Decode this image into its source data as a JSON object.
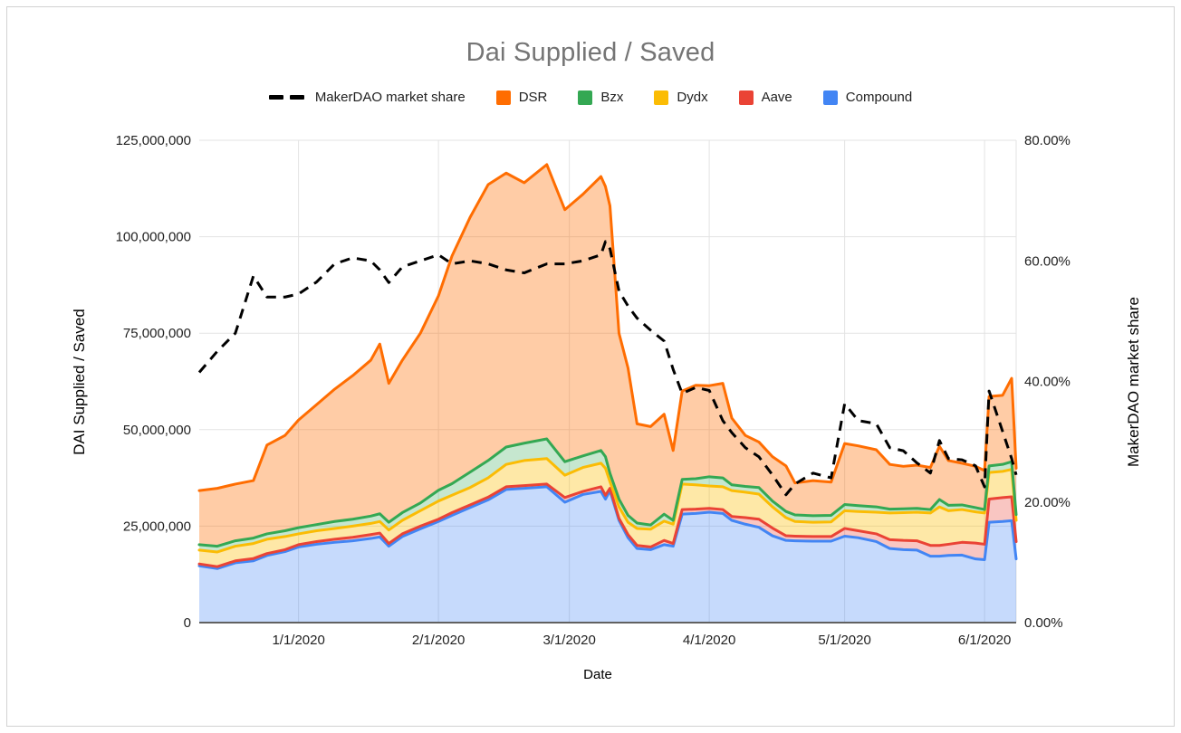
{
  "window": {
    "background": "#ffffff",
    "border_color": "#d2d2d2"
  },
  "chart": {
    "title": "Dai Supplied / Saved",
    "title_color": "#757575",
    "x_axis_title": "Date",
    "y_left_title": "DAI Supplied / Saved",
    "y_right_title": "MakerDAO market share"
  },
  "legend": {
    "items": [
      {
        "label": "MakerDAO market share",
        "marker": "dash",
        "color": "#000000"
      },
      {
        "label": "DSR",
        "marker": "square",
        "color": "#FF6D01"
      },
      {
        "label": "Bzx",
        "marker": "square",
        "color": "#34A853"
      },
      {
        "label": "Dydx",
        "marker": "square",
        "color": "#FBBC04"
      },
      {
        "label": "Aave",
        "marker": "square",
        "color": "#EA4335"
      },
      {
        "label": "Compound",
        "marker": "square",
        "color": "#4285F4"
      }
    ]
  },
  "chart_data": {
    "type": "area",
    "subtype": "stacked-area-with-dashed-line-overlay",
    "title": "Dai Supplied / Saved",
    "xlabel": "Date",
    "ylabel_left": "DAI Supplied / Saved",
    "ylabel_right": "MakerDAO market share",
    "units": "DAI, values in millions",
    "grid": true,
    "legend_position": "top",
    "x_dates": [
      "12/10/2019",
      "12/14/2019",
      "12/18/2019",
      "12/22/2019",
      "12/25/2019",
      "12/29/2019",
      "1/1/2020",
      "1/5/2020",
      "1/9/2020",
      "1/13/2020",
      "1/17/2020",
      "1/19/2020",
      "1/21/2020",
      "1/24/2020",
      "1/28/2020",
      "2/1/2020",
      "2/4/2020",
      "2/8/2020",
      "2/12/2020",
      "2/16/2020",
      "2/20/2020",
      "2/25/2020",
      "2/29/2020",
      "3/4/2020",
      "3/8/2020",
      "3/9/2020",
      "3/10/2020",
      "3/12/2020",
      "3/14/2020",
      "3/16/2020",
      "3/19/2020",
      "3/22/2020",
      "3/24/2020",
      "3/26/2020",
      "3/29/2020",
      "4/1/2020",
      "4/4/2020",
      "4/6/2020",
      "4/9/2020",
      "4/12/2020",
      "4/15/2020",
      "4/18/2020",
      "4/20/2020",
      "4/24/2020",
      "4/28/2020",
      "5/1/2020",
      "5/4/2020",
      "5/8/2020",
      "5/11/2020",
      "5/14/2020",
      "5/17/2020",
      "5/20/2020",
      "5/22/2020",
      "5/24/2020",
      "5/27/2020",
      "5/30/2020",
      "6/1/2020",
      "6/2/2020",
      "6/5/2020",
      "6/7/2020",
      "6/8/2020"
    ],
    "x_days": [
      0,
      4,
      8,
      12,
      15,
      19,
      22,
      26,
      30,
      34,
      38,
      40,
      42,
      45,
      49,
      53,
      56,
      60,
      64,
      68,
      72,
      77,
      81,
      85,
      89,
      90,
      91,
      93,
      95,
      97,
      100,
      103,
      105,
      107,
      110,
      113,
      116,
      118,
      121,
      124,
      127,
      130,
      132,
      136,
      140,
      143,
      146,
      150,
      153,
      156,
      159,
      162,
      164,
      166,
      169,
      172,
      174,
      175,
      178,
      180,
      181
    ],
    "x_day_max": 181,
    "stacked_series_bottom_to_top": [
      {
        "name": "Compound",
        "color": "#4285F4",
        "fill": "rgba(66,133,244,0.30)",
        "values": [
          14.7,
          14,
          15.5,
          16,
          17.4,
          18.4,
          19.6,
          20.3,
          20.8,
          21.2,
          21.8,
          22.2,
          19.8,
          22.3,
          24.3,
          26.2,
          27.8,
          29.8,
          31.8,
          34.5,
          34.8,
          35.2,
          31.2,
          33.2,
          34,
          32,
          34.2,
          26.5,
          22,
          19.2,
          18.9,
          20.2,
          19.8,
          28.1,
          28.3,
          28.6,
          28.3,
          26.5,
          25.5,
          24.7,
          22.5,
          21.3,
          21.2,
          21.1,
          21.1,
          22.4,
          22,
          21,
          19.2,
          18.9,
          18.8,
          17.2,
          17.2,
          17.4,
          17.5,
          16.5,
          16.3,
          26,
          26.2,
          26.4,
          16.5
        ]
      },
      {
        "name": "Aave",
        "color": "#EA4335",
        "fill": "rgba(234,67,53,0.30)",
        "values": [
          0.5,
          0.5,
          0.5,
          0.6,
          0.5,
          0.5,
          0.6,
          0.7,
          0.8,
          0.9,
          1,
          1,
          0.7,
          0.7,
          0.7,
          0.6,
          0.7,
          0.7,
          0.7,
          0.7,
          0.7,
          0.7,
          1.2,
          0.8,
          1.2,
          1,
          0.6,
          0.5,
          0.8,
          0.8,
          0.7,
          1.1,
          0.7,
          1.2,
          1.1,
          1,
          1,
          1,
          1.7,
          2.1,
          2,
          1.2,
          1.2,
          1.2,
          1.2,
          2,
          1.8,
          2,
          2.3,
          2.4,
          2.4,
          2.8,
          2.8,
          2.9,
          3.3,
          4.1,
          4,
          6,
          6.2,
          6.2,
          4.5
        ]
      },
      {
        "name": "Dydx",
        "color": "#FBBC04",
        "fill": "rgba(251,188,4,0.35)",
        "values": [
          3.6,
          3.8,
          3.8,
          3.9,
          3.7,
          3.4,
          2.8,
          2.8,
          2.8,
          2.9,
          2.9,
          3,
          3.5,
          3.5,
          4,
          4.7,
          4.5,
          4.5,
          5,
          5.8,
          6.5,
          6.6,
          5.8,
          6.2,
          6.1,
          7,
          1.7,
          3,
          3.2,
          4.4,
          4.6,
          5,
          5,
          6.6,
          6.3,
          5.8,
          5.9,
          6.7,
          6.6,
          6.5,
          5.5,
          4.7,
          3.8,
          3.7,
          3.8,
          4.6,
          5,
          5.6,
          6.9,
          7.2,
          7.4,
          8.4,
          10,
          8.7,
          8.5,
          8.1,
          8.1,
          6.9,
          6.8,
          7.1,
          5.5
        ]
      },
      {
        "name": "Bzx",
        "color": "#34A853",
        "fill": "rgba(52,168,83,0.28)",
        "values": [
          1.4,
          1.5,
          1.4,
          1.4,
          1.4,
          1.5,
          1.6,
          1.6,
          1.8,
          1.8,
          1.9,
          2,
          2,
          2,
          2,
          2.8,
          3,
          4,
          4.5,
          4.5,
          4.5,
          5.1,
          3.5,
          3,
          3.3,
          3,
          2.2,
          2,
          1.8,
          1.4,
          1.1,
          1.8,
          1,
          1.2,
          1.6,
          2.4,
          2.3,
          1.5,
          1.5,
          1.7,
          1.5,
          1.6,
          1.7,
          1.7,
          1.7,
          1.6,
          1.5,
          1.4,
          1,
          1,
          1,
          0.9,
          1.9,
          1.4,
          1.2,
          1.1,
          0.9,
          1.7,
          1.8,
          2,
          1.5
        ]
      },
      {
        "name": "DSR",
        "color": "#FF6D01",
        "fill": "rgba(255,109,1,0.35)",
        "values": [
          14,
          15,
          14.7,
          14.9,
          23,
          24.7,
          27.9,
          31.1,
          34.3,
          37.2,
          40.4,
          44,
          36,
          39.5,
          44,
          50.4,
          59,
          66,
          71.5,
          71,
          67.5,
          71.1,
          65.3,
          67.8,
          71,
          70,
          69.3,
          43,
          38.2,
          25.7,
          25.5,
          25.9,
          18.1,
          22.9,
          24.2,
          23.6,
          24.5,
          17.3,
          13.2,
          11.8,
          11.5,
          11.8,
          8.3,
          9.1,
          8.6,
          15.8,
          15.5,
          14.8,
          11.6,
          11,
          11.2,
          10.9,
          13.8,
          11.6,
          10.8,
          10.7,
          10.1,
          18,
          17.9,
          21.6,
          12
        ]
      }
    ],
    "line_series": {
      "name": "MakerDAO market share",
      "color": "#000000",
      "style": "dashed",
      "axis": "right",
      "values_percent": [
        41.5,
        45,
        48,
        57.5,
        54,
        54,
        54.5,
        56.5,
        59.5,
        60.5,
        60,
        58.5,
        56.4,
        59,
        60,
        61,
        59.5,
        60,
        59.5,
        58.5,
        58,
        59.5,
        59.5,
        60,
        61,
        63.2,
        62,
        55,
        52.5,
        50.5,
        48.5,
        46.7,
        42,
        38,
        39,
        38.5,
        33.5,
        31.5,
        29,
        27.5,
        24.5,
        21.2,
        23,
        24.8,
        24,
        36.3,
        33.5,
        33,
        29,
        28.5,
        26.5,
        24.8,
        30.2,
        27.2,
        27,
        26,
        22.5,
        38.4,
        31.7,
        27.2,
        24.5
      ]
    },
    "y_left": {
      "min": 0,
      "max": 125000000,
      "tick_step": 25000000,
      "tick_labels": [
        "0",
        "25,000,000",
        "50,000,000",
        "75,000,000",
        "100,000,000",
        "125,000,000"
      ]
    },
    "y_right": {
      "min": "0.00%",
      "max": "80.00%",
      "tick_labels": [
        "0.00%",
        "20.00%",
        "40.00%",
        "60.00%",
        "80.00%"
      ]
    },
    "x_ticks": [
      {
        "label": "1/1/2020",
        "day": 22
      },
      {
        "label": "2/1/2020",
        "day": 53
      },
      {
        "label": "3/1/2020",
        "day": 82
      },
      {
        "label": "4/1/2020",
        "day": 113
      },
      {
        "label": "5/1/2020",
        "day": 143
      },
      {
        "label": "6/1/2020",
        "day": 174
      }
    ],
    "gridline_color": "#e3e3e3",
    "axis_line_color": "#616161",
    "tick_label_color": "#212121"
  }
}
